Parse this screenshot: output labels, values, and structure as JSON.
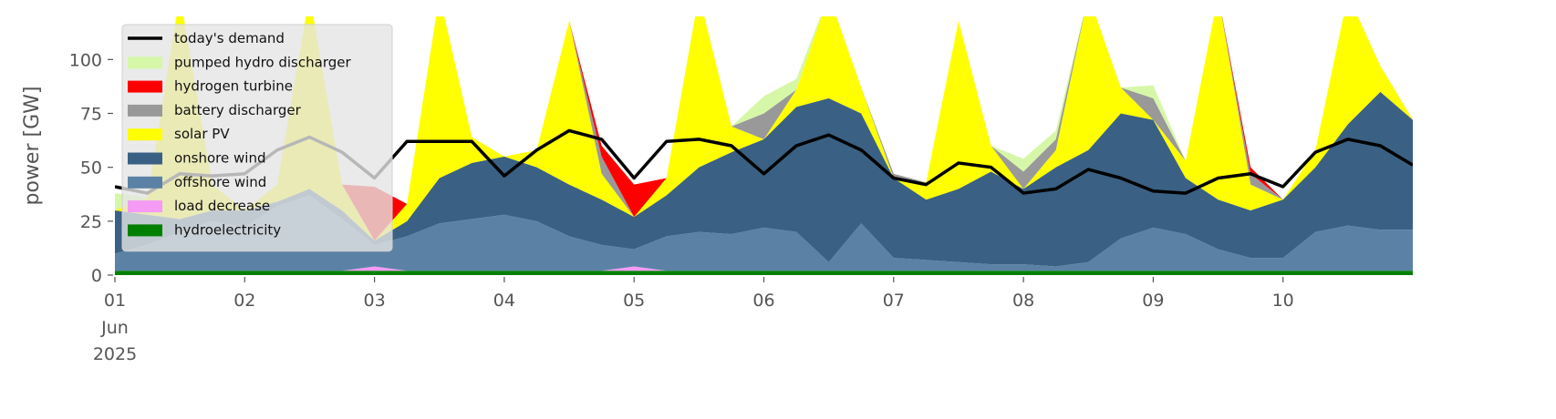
{
  "chart_data": {
    "type": "stacked_area",
    "ylabel": "power [GW]",
    "x": [
      1,
      1.25,
      1.5,
      1.75,
      2,
      2.25,
      2.5,
      2.75,
      3,
      3.25,
      3.5,
      3.75,
      4,
      4.25,
      4.5,
      4.75,
      5,
      5.25,
      5.5,
      5.75,
      6,
      6.25,
      6.5,
      6.75,
      7,
      7.25,
      7.5,
      7.75,
      8,
      8.25,
      8.5,
      8.75,
      9,
      9.25,
      9.5,
      9.75,
      10,
      10.25,
      10.5,
      10.75,
      11
    ],
    "xlim": [
      1,
      11
    ],
    "xticks": [
      {
        "value": 1,
        "label": "01"
      },
      {
        "value": 2,
        "label": "02"
      },
      {
        "value": 3,
        "label": "03"
      },
      {
        "value": 4,
        "label": "04"
      },
      {
        "value": 5,
        "label": "05"
      },
      {
        "value": 6,
        "label": "06"
      },
      {
        "value": 7,
        "label": "07"
      },
      {
        "value": 8,
        "label": "08"
      },
      {
        "value": 9,
        "label": "09"
      },
      {
        "value": 10,
        "label": "10"
      }
    ],
    "xtick_sublabels": [
      "Jun",
      "2025"
    ],
    "ylim": [
      0,
      120
    ],
    "yticks": [
      0,
      25,
      50,
      75,
      100
    ],
    "legend": "upper left",
    "series": [
      {
        "name": "hydroelectricity",
        "color": "#008000",
        "values": [
          2,
          2,
          2,
          2,
          2,
          2,
          2,
          2,
          2,
          2,
          2,
          2,
          2,
          2,
          2,
          2,
          2,
          2,
          2,
          2,
          2,
          2,
          2,
          2,
          2,
          2,
          2,
          2,
          2,
          2,
          2,
          2,
          2,
          2,
          2,
          2,
          2,
          2,
          2,
          2,
          2
        ]
      },
      {
        "name": "load decrease",
        "color": "#f59af5",
        "values": [
          0,
          0,
          0,
          0,
          0,
          0,
          0,
          0,
          2,
          0,
          0,
          0,
          0,
          0,
          0,
          0,
          2,
          0,
          0,
          0,
          0,
          0,
          0,
          0,
          0,
          0,
          0,
          0,
          0,
          0,
          0,
          0,
          0,
          0,
          0,
          0,
          0,
          0,
          0,
          0,
          0
        ]
      },
      {
        "name": "offshore wind",
        "color": "#5b82a5",
        "values": [
          8,
          12,
          18,
          23,
          20,
          30,
          35,
          24,
          10,
          16,
          22,
          24,
          26,
          23,
          16,
          12,
          8,
          16,
          18,
          17,
          20,
          18,
          4,
          22,
          6,
          5,
          4,
          3,
          3,
          2,
          4,
          15,
          20,
          17,
          10,
          6,
          6,
          18,
          21,
          19,
          19
        ]
      },
      {
        "name": "onshore wind",
        "color": "#3a6183",
        "values": [
          20,
          14,
          6,
          5,
          8,
          2,
          3,
          4,
          2,
          7,
          21,
          26,
          27,
          25,
          24,
          21,
          15,
          19,
          30,
          38,
          41,
          58,
          76,
          51,
          37,
          28,
          34,
          43,
          35,
          46,
          52,
          58,
          50,
          26,
          23,
          22,
          27,
          30,
          47,
          64,
          51
        ]
      },
      {
        "name": "solar PV",
        "color": "#ffff00",
        "values": [
          0,
          8,
          104,
          12,
          0,
          8,
          90,
          12,
          0,
          8,
          85,
          12,
          0,
          8,
          76,
          12,
          0,
          8,
          80,
          12,
          0,
          8,
          48,
          12,
          0,
          8,
          78,
          12,
          0,
          8,
          72,
          12,
          0,
          8,
          95,
          12,
          0,
          8,
          60,
          12,
          0
        ]
      },
      {
        "name": "battery discharger",
        "color": "#999999",
        "values": [
          0,
          0,
          0,
          0,
          0,
          0,
          0,
          0,
          0,
          0,
          0,
          0,
          0,
          0,
          0,
          8,
          0,
          0,
          0,
          0,
          12,
          0,
          0,
          0,
          2,
          0,
          0,
          0,
          8,
          5,
          0,
          0,
          10,
          0,
          0,
          5,
          0,
          0,
          0,
          0,
          0
        ]
      },
      {
        "name": "hydrogen turbine",
        "color": "#ff0000",
        "values": [
          0,
          0,
          0,
          0,
          0,
          0,
          0,
          0,
          25,
          0,
          0,
          0,
          0,
          0,
          0,
          5,
          15,
          0,
          0,
          0,
          0,
          0,
          0,
          0,
          0,
          0,
          0,
          0,
          0,
          0,
          0,
          0,
          0,
          0,
          0,
          3,
          0,
          0,
          0,
          0,
          0
        ]
      },
      {
        "name": "pumped hydro discharger",
        "color": "#d6f7a8",
        "values": [
          8,
          0,
          0,
          0,
          0,
          0,
          0,
          0,
          0,
          0,
          0,
          0,
          0,
          0,
          0,
          0,
          0,
          0,
          0,
          0,
          8,
          5,
          0,
          0,
          0,
          0,
          0,
          0,
          6,
          4,
          0,
          0,
          6,
          0,
          0,
          0,
          0,
          0,
          0,
          0,
          0
        ]
      }
    ],
    "line": {
      "name": "today's demand",
      "color": "#000000",
      "values": [
        41,
        38,
        47,
        46,
        47,
        58,
        64,
        57,
        45,
        62,
        62,
        62,
        46,
        58,
        67,
        63,
        45,
        62,
        63,
        60,
        47,
        60,
        65,
        58,
        45,
        42,
        52,
        50,
        38,
        40,
        49,
        45,
        39,
        38,
        45,
        47,
        41,
        57,
        63,
        60,
        51
      ]
    }
  }
}
